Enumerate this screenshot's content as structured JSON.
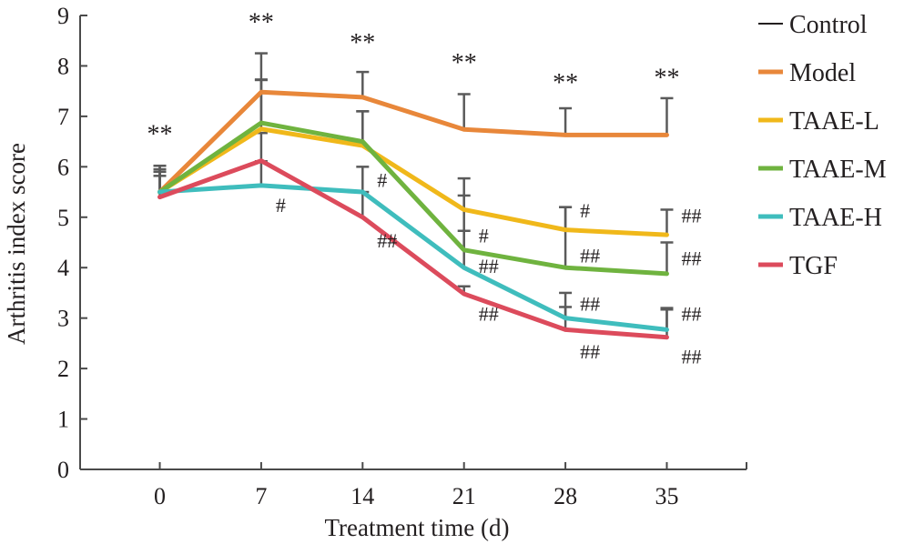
{
  "chart_data": {
    "type": "line",
    "title": "",
    "xlabel": "Treatment time (d)",
    "ylabel": "Arthritis index score",
    "x": [
      0,
      7,
      14,
      21,
      28,
      35
    ],
    "xticks": [
      "0",
      "7",
      "14",
      "21",
      "28",
      "35"
    ],
    "yticks": [
      "0",
      "1",
      "2",
      "3",
      "4",
      "5",
      "6",
      "7",
      "8",
      "9"
    ],
    "xlim": [
      -5.5,
      40.5
    ],
    "ylim": [
      0,
      9
    ],
    "grid": false,
    "legend_position": "right",
    "series": [
      {
        "name": "Control",
        "color": "#231f20",
        "values": [
          null,
          null,
          null,
          null,
          null,
          null
        ]
      },
      {
        "name": "Model",
        "color": "#e8873a",
        "values": [
          5.5,
          7.48,
          7.38,
          6.74,
          6.63,
          6.63
        ],
        "error": [
          0.52,
          0.77,
          0.5,
          0.7,
          0.53,
          0.73
        ]
      },
      {
        "name": "TAAE-L",
        "color": "#f0b81a",
        "values": [
          5.5,
          6.75,
          6.42,
          5.15,
          4.75,
          4.65
        ],
        "error": [
          0.4,
          0.98,
          0.68,
          0.62,
          0.45,
          0.5
        ]
      },
      {
        "name": "TAAE-M",
        "color": "#6fb33f",
        "values": [
          5.5,
          6.87,
          6.5,
          4.35,
          4.0,
          3.88
        ],
        "error": [
          0.45,
          0.85,
          0.6,
          1.08,
          1.2,
          0.62
        ]
      },
      {
        "name": "TAAE-H",
        "color": "#3fbdbd",
        "values": [
          5.5,
          5.63,
          5.5,
          4.0,
          3.0,
          2.77
        ],
        "error": [
          0.52,
          0.48,
          0.5,
          0.73,
          0.5,
          0.43
        ]
      },
      {
        "name": "TGF",
        "color": "#dc4b5c",
        "values": [
          5.4,
          6.12,
          5.0,
          3.48,
          2.77,
          2.62
        ],
        "error": [
          0.42,
          0.55,
          0.5,
          0.15,
          0.45,
          0.55
        ]
      }
    ],
    "annotations": [
      {
        "text": "**",
        "x": 0,
        "y": 6.48
      },
      {
        "text": "**",
        "x": 7,
        "y": 8.7
      },
      {
        "text": "**",
        "x": 14,
        "y": 8.3
      },
      {
        "text": "**",
        "x": 21,
        "y": 7.9
      },
      {
        "text": "**",
        "x": 28,
        "y": 7.5
      },
      {
        "text": "**",
        "x": 35,
        "y": 7.6
      },
      {
        "text": "#",
        "x": 7,
        "y": 5.1
      },
      {
        "text": "#",
        "x": 14,
        "y": 5.6
      },
      {
        "text": "##",
        "x": 14,
        "y": 4.4
      },
      {
        "text": "#",
        "x": 21,
        "y": 4.5
      },
      {
        "text": "##",
        "x": 21,
        "y": 3.9
      },
      {
        "text": "##",
        "x": 21,
        "y": 2.95
      },
      {
        "text": "#",
        "x": 28,
        "y": 5.0
      },
      {
        "text": "##",
        "x": 28,
        "y": 4.1
      },
      {
        "text": "##",
        "x": 28,
        "y": 3.15
      },
      {
        "text": "##",
        "x": 28,
        "y": 2.2
      },
      {
        "text": "##",
        "x": 35,
        "y": 4.9
      },
      {
        "text": "##",
        "x": 35,
        "y": 4.05
      },
      {
        "text": "##",
        "x": 35,
        "y": 2.95
      },
      {
        "text": "##",
        "x": 35,
        "y": 2.1
      }
    ]
  }
}
